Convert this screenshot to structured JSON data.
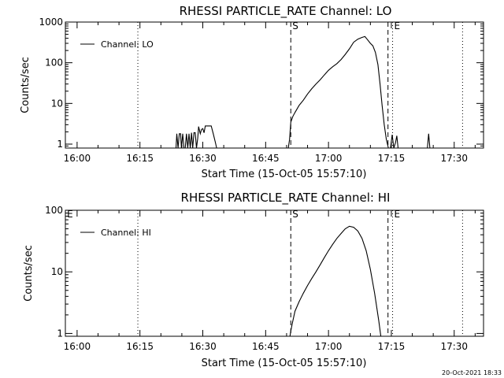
{
  "footer": {
    "timestamp": "20-Oct-2021 18:33"
  },
  "chart_data": [
    {
      "type": "line",
      "title": "RHESSI PARTICLE_RATE Channel: LO",
      "xlabel": "Start Time (15-Oct-05 15:57:10)",
      "ylabel": "Counts/sec",
      "x_unit": "minutes after 16:00 on 15-Oct-05",
      "x_ticks": [
        {
          "x": 0,
          "label": "16:00"
        },
        {
          "x": 15,
          "label": "16:15"
        },
        {
          "x": 30,
          "label": "16:30"
        },
        {
          "x": 45,
          "label": "16:45"
        },
        {
          "x": 60,
          "label": "17:00"
        },
        {
          "x": 75,
          "label": "17:15"
        },
        {
          "x": 90,
          "label": "17:30"
        }
      ],
      "xlim": [
        -2.8,
        97
      ],
      "ylim": [
        0.8,
        1000
      ],
      "ylog": true,
      "y_ticks": [
        {
          "v": 1,
          "label": "1"
        },
        {
          "v": 10,
          "label": "10"
        },
        {
          "v": 100,
          "label": "100"
        },
        {
          "v": 1000,
          "label": "1000"
        }
      ],
      "legend": {
        "label": "Channel: LO",
        "position": "top-left"
      },
      "markers": [
        {
          "x": 14.5,
          "style": "dotted",
          "label": ""
        },
        {
          "x": 51.0,
          "style": "dashed",
          "label": "S"
        },
        {
          "x": 74.2,
          "style": "dashed",
          "label": ""
        },
        {
          "x": 75.3,
          "style": "dotted",
          "label": "E"
        },
        {
          "x": 92.0,
          "style": "dotted",
          "label": ""
        }
      ],
      "series": [
        {
          "name": "Channel: LO",
          "x": [
            23.6,
            23.8,
            24.1,
            24.4,
            24.7,
            24.9,
            25.2,
            25.5,
            25.8,
            26.1,
            26.4,
            26.7,
            27.0,
            27.3,
            27.6,
            27.9,
            28.2,
            28.5,
            28.8,
            29.0,
            29.4,
            29.7,
            30.0,
            30.3,
            30.6,
            31.0,
            31.5,
            32.0,
            32.5,
            33.0,
            33.3,
            33.8,
            50.4,
            50.7,
            51.0,
            51.5,
            52,
            53,
            54,
            55,
            56,
            57,
            58,
            59,
            60,
            61,
            62,
            63,
            64,
            65,
            66,
            67,
            68,
            68.7,
            69.3,
            70,
            70.6,
            71.2,
            71.8,
            72.3,
            72.8,
            73.3,
            73.8,
            74.3,
            74.8,
            75.2,
            75.6,
            76.0,
            76.3,
            76.6,
            77.0,
            83.6,
            83.9,
            84.2
          ],
          "y": [
            0.8,
            1.8,
            0.8,
            1.8,
            1.8,
            0.8,
            1.8,
            0.8,
            0.8,
            1.8,
            0.8,
            1.8,
            0.8,
            1.9,
            0.8,
            1.9,
            1.9,
            0.8,
            1.4,
            2.7,
            1.8,
            2.3,
            2.4,
            1.9,
            2.8,
            2.8,
            2.8,
            2.8,
            1.8,
            1.1,
            0.8,
            0.8,
            0.8,
            1.3,
            3.5,
            4.8,
            6,
            9,
            12,
            17,
            23,
            30,
            38,
            50,
            65,
            80,
            95,
            120,
            160,
            220,
            320,
            380,
            420,
            440,
            370,
            300,
            260,
            180,
            90,
            30,
            9,
            3,
            1.3,
            0.8,
            0.8,
            1.7,
            0.8,
            1.1,
            1.6,
            0.8,
            0.8,
            0.8,
            1.8,
            0.8
          ]
        }
      ]
    },
    {
      "type": "line",
      "title": "RHESSI PARTICLE_RATE Channel: HI",
      "xlabel": "Start Time (15-Oct-05 15:57:10)",
      "ylabel": "Counts/sec",
      "x_unit": "minutes after 16:00 on 15-Oct-05",
      "x_ticks": [
        {
          "x": 0,
          "label": "16:00"
        },
        {
          "x": 15,
          "label": "16:15"
        },
        {
          "x": 30,
          "label": "16:30"
        },
        {
          "x": 45,
          "label": "16:45"
        },
        {
          "x": 60,
          "label": "17:00"
        },
        {
          "x": 75,
          "label": "17:15"
        },
        {
          "x": 90,
          "label": "17:30"
        }
      ],
      "xlim": [
        -2.8,
        97
      ],
      "ylim": [
        0.9,
        100
      ],
      "ylog": true,
      "y_ticks": [
        {
          "v": 1,
          "label": "1"
        },
        {
          "v": 10,
          "label": "10"
        },
        {
          "v": 100,
          "label": "100"
        }
      ],
      "legend": {
        "label": "Channel: HI",
        "position": "top-left"
      },
      "markers": [
        {
          "x": -2.6,
          "style": "none",
          "label": "E"
        },
        {
          "x": 14.5,
          "style": "dotted",
          "label": ""
        },
        {
          "x": 51.0,
          "style": "dashed",
          "label": "S"
        },
        {
          "x": 74.2,
          "style": "dashed",
          "label": ""
        },
        {
          "x": 75.3,
          "style": "dotted",
          "label": "E"
        },
        {
          "x": 92.0,
          "style": "dotted",
          "label": ""
        }
      ],
      "series": [
        {
          "name": "Channel: HI",
          "x": [
            50.8,
            51.0,
            51.4,
            52,
            53,
            54,
            55,
            56,
            57,
            58,
            59,
            60,
            61,
            62,
            63,
            64,
            65,
            66,
            67,
            68,
            69,
            70,
            71,
            72,
            72.5
          ],
          "y": [
            0.9,
            1.1,
            1.5,
            2.3,
            3.3,
            4.5,
            6,
            7.8,
            10,
            13,
            17,
            22,
            28,
            35,
            42,
            50,
            55,
            53,
            46,
            35,
            22,
            11,
            4.5,
            1.6,
            0.9
          ]
        }
      ]
    }
  ]
}
